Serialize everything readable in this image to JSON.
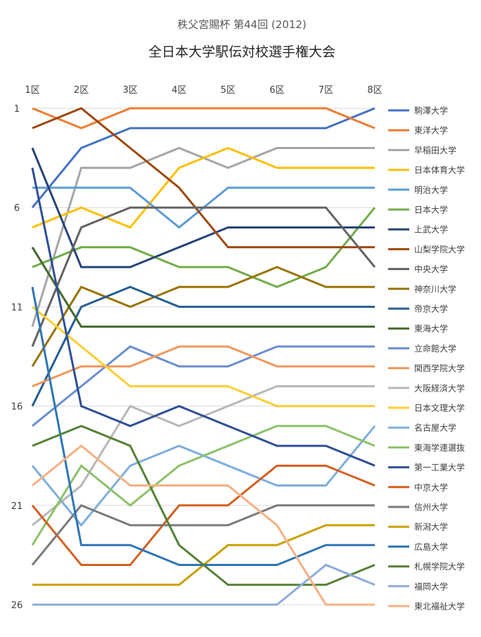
{
  "chart_data": {
    "type": "line",
    "subtitle": "秩父宮賜杯 第44回 (2012)",
    "title": "全日本大学駅伝対校選手権大会",
    "categories": [
      "1区",
      "2区",
      "3区",
      "4区",
      "5区",
      "6区",
      "7区",
      "8区"
    ],
    "y_ticks": [
      "1",
      "6",
      "11",
      "16",
      "21",
      "26"
    ],
    "ylim": [
      1,
      26
    ],
    "y_inverted": true,
    "grid": true,
    "legend_position": "right",
    "series": [
      {
        "name": "駒澤大学",
        "color": "#4472c4",
        "values": [
          6,
          3,
          2,
          2,
          2,
          2,
          2,
          1
        ]
      },
      {
        "name": "東洋大学",
        "color": "#ed7d31",
        "values": [
          1,
          2,
          1,
          1,
          1,
          1,
          1,
          2
        ]
      },
      {
        "name": "早稲田大学",
        "color": "#a5a5a5",
        "values": [
          12,
          4,
          4,
          3,
          4,
          3,
          3,
          3
        ]
      },
      {
        "name": "日本体育大学",
        "color": "#ffc000",
        "values": [
          7,
          6,
          7,
          4,
          3,
          4,
          4,
          4
        ]
      },
      {
        "name": "明治大学",
        "color": "#5b9bd5",
        "values": [
          5,
          5,
          5,
          7,
          5,
          5,
          5,
          5
        ]
      },
      {
        "name": "日本大学",
        "color": "#70ad47",
        "values": [
          9,
          8,
          8,
          9,
          9,
          10,
          9,
          6
        ]
      },
      {
        "name": "上武大学",
        "color": "#264478",
        "values": [
          3,
          9,
          9,
          8,
          7,
          7,
          7,
          7
        ]
      },
      {
        "name": "山梨学院大学",
        "color": "#9e480e",
        "values": [
          2,
          1,
          3,
          5,
          8,
          8,
          8,
          8
        ]
      },
      {
        "name": "中央大学",
        "color": "#636363",
        "values": [
          13,
          7,
          6,
          6,
          6,
          6,
          6,
          9
        ]
      },
      {
        "name": "神奈川大学",
        "color": "#997300",
        "values": [
          14,
          10,
          11,
          10,
          10,
          9,
          10,
          10
        ]
      },
      {
        "name": "帝京大学",
        "color": "#255e91",
        "values": [
          16,
          11,
          10,
          11,
          11,
          11,
          11,
          11
        ]
      },
      {
        "name": "東海大学",
        "color": "#43682b",
        "values": [
          8,
          12,
          12,
          12,
          12,
          12,
          12,
          12
        ]
      },
      {
        "name": "立命館大学",
        "color": "#698ed0",
        "values": [
          17,
          15,
          13,
          14,
          14,
          13,
          13,
          13
        ]
      },
      {
        "name": "関西学院大学",
        "color": "#f1975a",
        "values": [
          15,
          14,
          14,
          13,
          13,
          14,
          14,
          14
        ]
      },
      {
        "name": "大阪経済大学",
        "color": "#b7b7b7",
        "values": [
          22,
          20,
          16,
          17,
          16,
          15,
          15,
          15
        ]
      },
      {
        "name": "日本文理大学",
        "color": "#ffcd33",
        "values": [
          11,
          13,
          15,
          15,
          15,
          16,
          16,
          16
        ]
      },
      {
        "name": "名古屋大学",
        "color": "#7cafdd",
        "values": [
          19,
          22,
          19,
          18,
          19,
          20,
          20,
          17
        ]
      },
      {
        "name": "東海学連選抜",
        "color": "#8cc168",
        "values": [
          23,
          19,
          21,
          19,
          18,
          17,
          17,
          18
        ]
      },
      {
        "name": "第一工業大学",
        "color": "#2f4f97",
        "values": [
          4,
          16,
          17,
          16,
          17,
          18,
          18,
          19
        ]
      },
      {
        "name": "中京大学",
        "color": "#d2601f",
        "values": [
          21,
          24,
          24,
          21,
          21,
          19,
          19,
          20
        ]
      },
      {
        "name": "信州大学",
        "color": "#7a7a7a",
        "values": [
          24,
          21,
          22,
          22,
          22,
          21,
          21,
          21
        ]
      },
      {
        "name": "新潟大学",
        "color": "#c9a000",
        "values": [
          25,
          25,
          25,
          25,
          23,
          23,
          22,
          22
        ]
      },
      {
        "name": "広島大学",
        "color": "#2e75b6",
        "values": [
          10,
          23,
          23,
          24,
          24,
          24,
          23,
          23
        ]
      },
      {
        "name": "札幌学院大学",
        "color": "#548235",
        "values": [
          18,
          17,
          18,
          23,
          25,
          25,
          25,
          24
        ]
      },
      {
        "name": "福岡大学",
        "color": "#8faadc",
        "values": [
          26,
          26,
          26,
          26,
          26,
          26,
          24,
          25
        ]
      },
      {
        "name": "東北福祉大学",
        "color": "#f4b183",
        "values": [
          20,
          18,
          20,
          20,
          20,
          22,
          26,
          26
        ]
      }
    ]
  }
}
